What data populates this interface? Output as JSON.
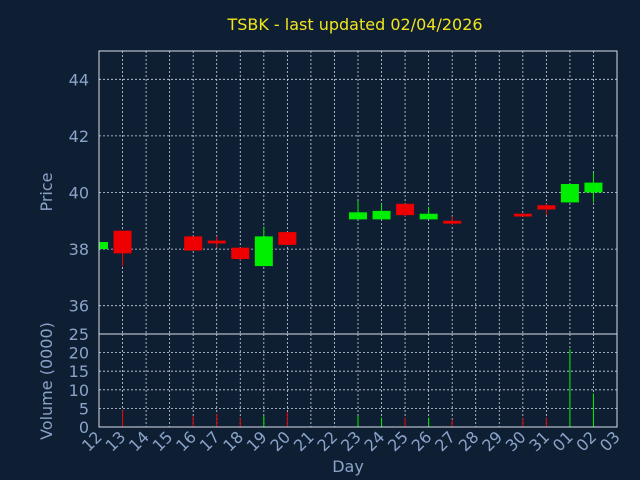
{
  "chart_data": {
    "type": "candlestick",
    "title": "TSBK - last updated 02/04/2026",
    "xlabel": "Day",
    "ylabel": "Price",
    "volume_label": "Volume (0000)",
    "ylim": [
      35,
      45
    ],
    "y_ticks": [
      36,
      38,
      40,
      42,
      44
    ],
    "volume_ylim": [
      0,
      25
    ],
    "volume_ticks": [
      0,
      5,
      10,
      15,
      20,
      25
    ],
    "x_tick_labels": [
      "12",
      "13",
      "14",
      "15",
      "16",
      "17",
      "18",
      "19",
      "20",
      "21",
      "22",
      "23",
      "24",
      "25",
      "26",
      "27",
      "28",
      "29",
      "30",
      "31",
      "01",
      "02",
      "03"
    ],
    "grid": true,
    "up_color": "#00ee00",
    "down_color": "#ee0000",
    "candles": [
      {
        "day": "12",
        "open": 38.0,
        "high": 38.25,
        "low": 38.0,
        "close": 38.25,
        "volume": 0.5
      },
      {
        "day": "13",
        "open": 38.65,
        "high": 38.65,
        "low": 37.4,
        "close": 37.85,
        "volume": 4.5
      },
      {
        "day": "16",
        "open": 38.45,
        "high": 38.45,
        "low": 37.95,
        "close": 37.95,
        "volume": 3.0
      },
      {
        "day": "17",
        "open": 38.3,
        "high": 38.45,
        "low": 38.05,
        "close": 38.2,
        "volume": 3.5
      },
      {
        "day": "18",
        "open": 38.05,
        "high": 38.05,
        "low": 37.6,
        "close": 37.65,
        "volume": 2.5
      },
      {
        "day": "19",
        "open": 37.4,
        "high": 38.8,
        "low": 37.4,
        "close": 38.45,
        "volume": 3.0
      },
      {
        "day": "20",
        "open": 38.6,
        "high": 38.6,
        "low": 38.15,
        "close": 38.15,
        "volume": 4.0
      },
      {
        "day": "23",
        "open": 39.05,
        "high": 39.7,
        "low": 39.05,
        "close": 39.3,
        "volume": 3.0
      },
      {
        "day": "24",
        "open": 39.05,
        "high": 39.6,
        "low": 39.05,
        "close": 39.35,
        "volume": 2.5
      },
      {
        "day": "25",
        "open": 39.6,
        "high": 39.6,
        "low": 39.15,
        "close": 39.2,
        "volume": 2.5
      },
      {
        "day": "26",
        "open": 39.05,
        "high": 39.5,
        "low": 39.05,
        "close": 39.25,
        "volume": 2.5
      },
      {
        "day": "27",
        "open": 39.0,
        "high": 39.15,
        "low": 38.85,
        "close": 38.9,
        "volume": 2.0
      },
      {
        "day": "30",
        "open": 39.25,
        "high": 39.25,
        "low": 39.15,
        "close": 39.15,
        "volume": 2.5
      },
      {
        "day": "31",
        "open": 39.55,
        "high": 39.6,
        "low": 39.2,
        "close": 39.4,
        "volume": 2.5
      },
      {
        "day": "01",
        "open": 39.65,
        "high": 40.3,
        "low": 39.65,
        "close": 40.3,
        "volume": 21.0
      },
      {
        "day": "02",
        "open": 40.0,
        "high": 40.7,
        "low": 39.65,
        "close": 40.35,
        "volume": 9.0
      }
    ]
  }
}
